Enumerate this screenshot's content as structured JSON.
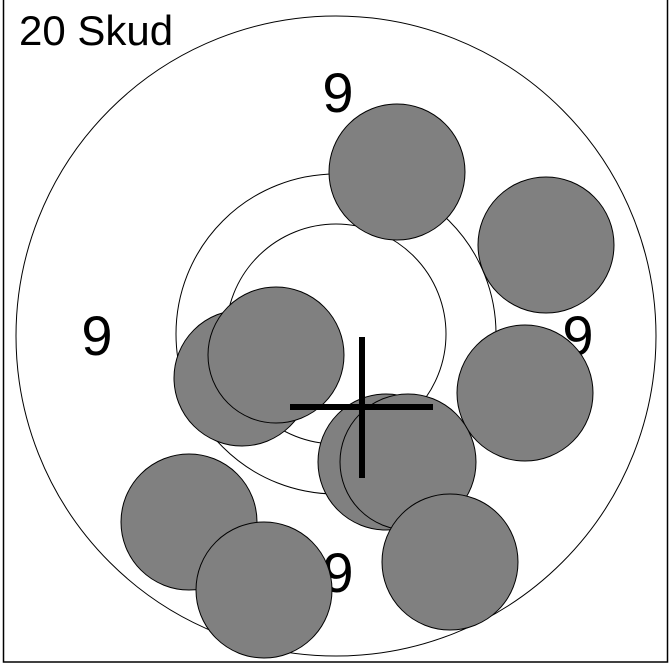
{
  "header": {
    "title": "20 Skud"
  },
  "ring_labels": {
    "top": "9",
    "left": "9",
    "right": "9",
    "bottom": "9"
  }
}
